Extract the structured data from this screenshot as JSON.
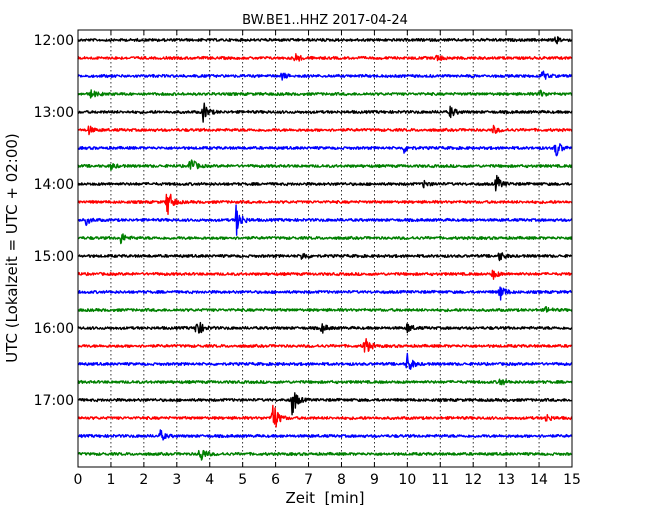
{
  "chart_data": {
    "type": "line",
    "title": "BW.BE1..HHZ 2017-04-24",
    "xlabel": "Zeit  [min]",
    "ylabel": "UTC (Lokalzeit = UTC + 02:00)",
    "xlim": [
      0,
      15
    ],
    "x_ticks": [
      0,
      1,
      2,
      3,
      4,
      5,
      6,
      7,
      8,
      9,
      10,
      11,
      12,
      13,
      14,
      15
    ],
    "y_tick_labels": [
      "12:00",
      "13:00",
      "14:00",
      "15:00",
      "16:00",
      "17:00"
    ],
    "grid": "vertical dotted lines at each minute",
    "legend": "none",
    "trace_colors": [
      "#000000",
      "#ff0000",
      "#0000ff",
      "#008000"
    ],
    "series": [
      {
        "start": "12:00",
        "color": "#000000",
        "events": [
          {
            "t": 14.5,
            "amp": 0.25
          }
        ]
      },
      {
        "start": "12:15",
        "color": "#ff0000",
        "events": [
          {
            "t": 6.6,
            "amp": 0.35
          },
          {
            "t": 10.9,
            "amp": 0.25
          }
        ]
      },
      {
        "start": "12:30",
        "color": "#0000ff",
        "events": [
          {
            "t": 6.2,
            "amp": 0.25
          },
          {
            "t": 14.1,
            "amp": 0.35
          }
        ]
      },
      {
        "start": "12:45",
        "color": "#008000",
        "events": [
          {
            "t": 0.4,
            "amp": 0.3
          },
          {
            "t": 14.0,
            "amp": 0.3
          }
        ]
      },
      {
        "start": "13:00",
        "color": "#000000",
        "events": [
          {
            "t": 3.8,
            "amp": 0.75
          },
          {
            "t": 11.3,
            "amp": 0.45
          }
        ]
      },
      {
        "start": "13:15",
        "color": "#ff0000",
        "events": [
          {
            "t": 0.3,
            "amp": 0.35
          },
          {
            "t": 12.6,
            "amp": 0.3
          }
        ]
      },
      {
        "start": "13:30",
        "color": "#0000ff",
        "events": [
          {
            "t": 9.9,
            "amp": 0.3
          },
          {
            "t": 14.5,
            "amp": 0.75
          }
        ]
      },
      {
        "start": "13:45",
        "color": "#008000",
        "events": [
          {
            "t": 3.4,
            "amp": 0.8
          },
          {
            "t": 1.0,
            "amp": 0.25
          }
        ]
      },
      {
        "start": "14:00",
        "color": "#000000",
        "events": [
          {
            "t": 12.7,
            "amp": 0.65
          },
          {
            "t": 10.5,
            "amp": 0.25
          }
        ]
      },
      {
        "start": "14:15",
        "color": "#ff0000",
        "events": [
          {
            "t": 2.7,
            "amp": 1.2
          }
        ]
      },
      {
        "start": "14:30",
        "color": "#0000ff",
        "events": [
          {
            "t": 4.8,
            "amp": 1.2
          },
          {
            "t": 0.25,
            "amp": 0.3
          }
        ]
      },
      {
        "start": "14:45",
        "color": "#008000",
        "events": [
          {
            "t": 1.3,
            "amp": 0.4
          }
        ]
      },
      {
        "start": "15:00",
        "color": "#000000",
        "events": [
          {
            "t": 6.8,
            "amp": 0.3
          },
          {
            "t": 12.8,
            "amp": 0.35
          }
        ]
      },
      {
        "start": "15:15",
        "color": "#ff0000",
        "events": [
          {
            "t": 12.6,
            "amp": 0.35
          }
        ]
      },
      {
        "start": "15:30",
        "color": "#0000ff",
        "events": [
          {
            "t": 12.8,
            "amp": 0.7
          }
        ]
      },
      {
        "start": "15:45",
        "color": "#008000",
        "events": [
          {
            "t": 14.2,
            "amp": 0.2
          }
        ]
      },
      {
        "start": "16:00",
        "color": "#000000",
        "events": [
          {
            "t": 3.6,
            "amp": 0.8
          },
          {
            "t": 7.4,
            "amp": 0.35
          },
          {
            "t": 10.0,
            "amp": 0.35
          }
        ]
      },
      {
        "start": "16:15",
        "color": "#ff0000",
        "events": [
          {
            "t": 8.7,
            "amp": 0.8
          }
        ]
      },
      {
        "start": "16:30",
        "color": "#0000ff",
        "events": [
          {
            "t": 10.0,
            "amp": 0.8
          }
        ]
      },
      {
        "start": "16:45",
        "color": "#008000",
        "events": [
          {
            "t": 12.8,
            "amp": 0.3
          }
        ]
      },
      {
        "start": "17:00",
        "color": "#000000",
        "events": [
          {
            "t": 6.5,
            "amp": 1.2
          }
        ]
      },
      {
        "start": "17:15",
        "color": "#ff0000",
        "events": [
          {
            "t": 5.9,
            "amp": 1.5
          },
          {
            "t": 14.2,
            "amp": 0.3
          }
        ]
      },
      {
        "start": "17:30",
        "color": "#0000ff",
        "events": [
          {
            "t": 2.5,
            "amp": 0.4
          }
        ]
      },
      {
        "start": "17:45",
        "color": "#008000",
        "events": [
          {
            "t": 3.7,
            "amp": 0.7
          }
        ]
      }
    ]
  }
}
